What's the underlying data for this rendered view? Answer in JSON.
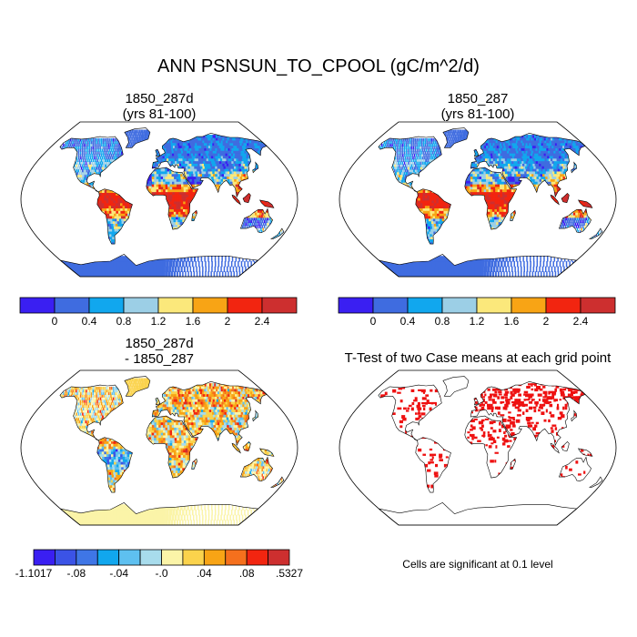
{
  "title": "ANN PSNSUN_TO_CPOOL (gC/m^2/d)",
  "panels": {
    "top_left": {
      "line1": "1850_287d",
      "line2": "(yrs 81-100)"
    },
    "top_right": {
      "line1": "1850_287",
      "line2": "(yrs 81-100)"
    },
    "bottom_left": {
      "line1": "1850_287d",
      "line2": "- 1850_287"
    },
    "bottom_right": {
      "line1": "T-Test of two Case means at each grid point"
    }
  },
  "colorbar_top": {
    "colors": [
      "#3a1ff2",
      "#3f6ce0",
      "#11a7ee",
      "#9ccfe6",
      "#fbe87b",
      "#f8a415",
      "#f22510",
      "#cd2f2f"
    ],
    "labels": [
      "0",
      "0.4",
      "0.8",
      "1.2",
      "1.6",
      "2",
      "2.4"
    ]
  },
  "colorbar_diff": {
    "colors": [
      "#3a1ff2",
      "#3b53e6",
      "#3f76e6",
      "#11a7ee",
      "#5ec0f0",
      "#a8dcec",
      "#fbf4a8",
      "#fbd34c",
      "#f8a415",
      "#f5701d",
      "#f22510",
      "#cd2f2f"
    ],
    "labels": [
      "-1.1017",
      "-.08",
      "-.04",
      "-.0",
      ".04",
      ".08",
      ".5327"
    ]
  },
  "ttest_note": "Cells are significant at 0.1 level",
  "colors": {
    "ocean": "#ffffff",
    "coast": "#000000",
    "ttest_sig": "#ee1111"
  }
}
